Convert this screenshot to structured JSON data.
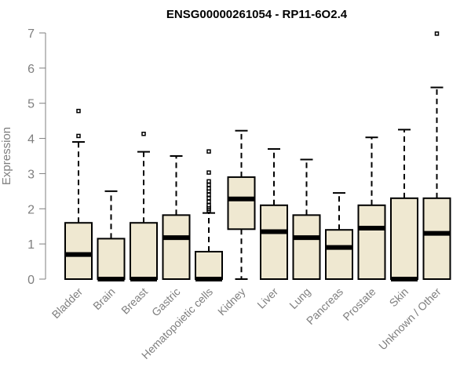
{
  "chart_data": {
    "type": "boxplot",
    "title": "ENSG00000261054 - RP11-6O2.4",
    "xlabel": "",
    "ylabel": "Expression",
    "ylim": [
      0,
      7
    ],
    "yticks": [
      0,
      1,
      2,
      3,
      4,
      5,
      6,
      7
    ],
    "grid": false,
    "box_color": "#efe8d1",
    "categories": [
      "Bladder",
      "Brain",
      "Breast",
      "Gastric",
      "Hematopoietic cells",
      "Kidney",
      "Liver",
      "Lung",
      "Pancreas",
      "Prostate",
      "Skin",
      "Unknown / Other"
    ],
    "boxes": [
      {
        "whisker_low": 0,
        "q1": 0,
        "median": 0.7,
        "q3": 1.6,
        "whisker_high": 3.9,
        "outliers": [
          4.07,
          4.78
        ]
      },
      {
        "whisker_low": 0,
        "q1": 0,
        "median": 0,
        "q3": 1.15,
        "whisker_high": 2.5,
        "outliers": []
      },
      {
        "whisker_low": 0,
        "q1": 0,
        "median": 0,
        "q3": 1.6,
        "whisker_high": 3.62,
        "outliers": [
          4.13
        ]
      },
      {
        "whisker_low": 0,
        "q1": 0,
        "median": 1.18,
        "q3": 1.82,
        "whisker_high": 3.5,
        "outliers": []
      },
      {
        "whisker_low": 0,
        "q1": 0,
        "median": 0,
        "q3": 0.78,
        "whisker_high": 1.88,
        "outliers": [
          1.95,
          2.0,
          2.05,
          2.1,
          2.2,
          2.3,
          2.4,
          2.5,
          2.58,
          2.68,
          2.78,
          3.03,
          3.63
        ]
      },
      {
        "whisker_low": 0,
        "q1": 1.42,
        "median": 2.28,
        "q3": 2.9,
        "whisker_high": 4.22,
        "outliers": []
      },
      {
        "whisker_low": 0,
        "q1": 0,
        "median": 1.35,
        "q3": 2.1,
        "whisker_high": 3.7,
        "outliers": []
      },
      {
        "whisker_low": 0,
        "q1": 0,
        "median": 1.18,
        "q3": 1.82,
        "whisker_high": 3.4,
        "outliers": []
      },
      {
        "whisker_low": 0,
        "q1": 0,
        "median": 0.9,
        "q3": 1.4,
        "whisker_high": 2.45,
        "outliers": []
      },
      {
        "whisker_low": 0,
        "q1": 0,
        "median": 1.45,
        "q3": 2.1,
        "whisker_high": 4.03,
        "outliers": []
      },
      {
        "whisker_low": 0,
        "q1": 0,
        "median": 0,
        "q3": 2.3,
        "whisker_high": 4.25,
        "outliers": []
      },
      {
        "whisker_low": 0,
        "q1": 0,
        "median": 1.3,
        "q3": 2.3,
        "whisker_high": 5.45,
        "outliers": [
          6.98
        ]
      }
    ]
  }
}
